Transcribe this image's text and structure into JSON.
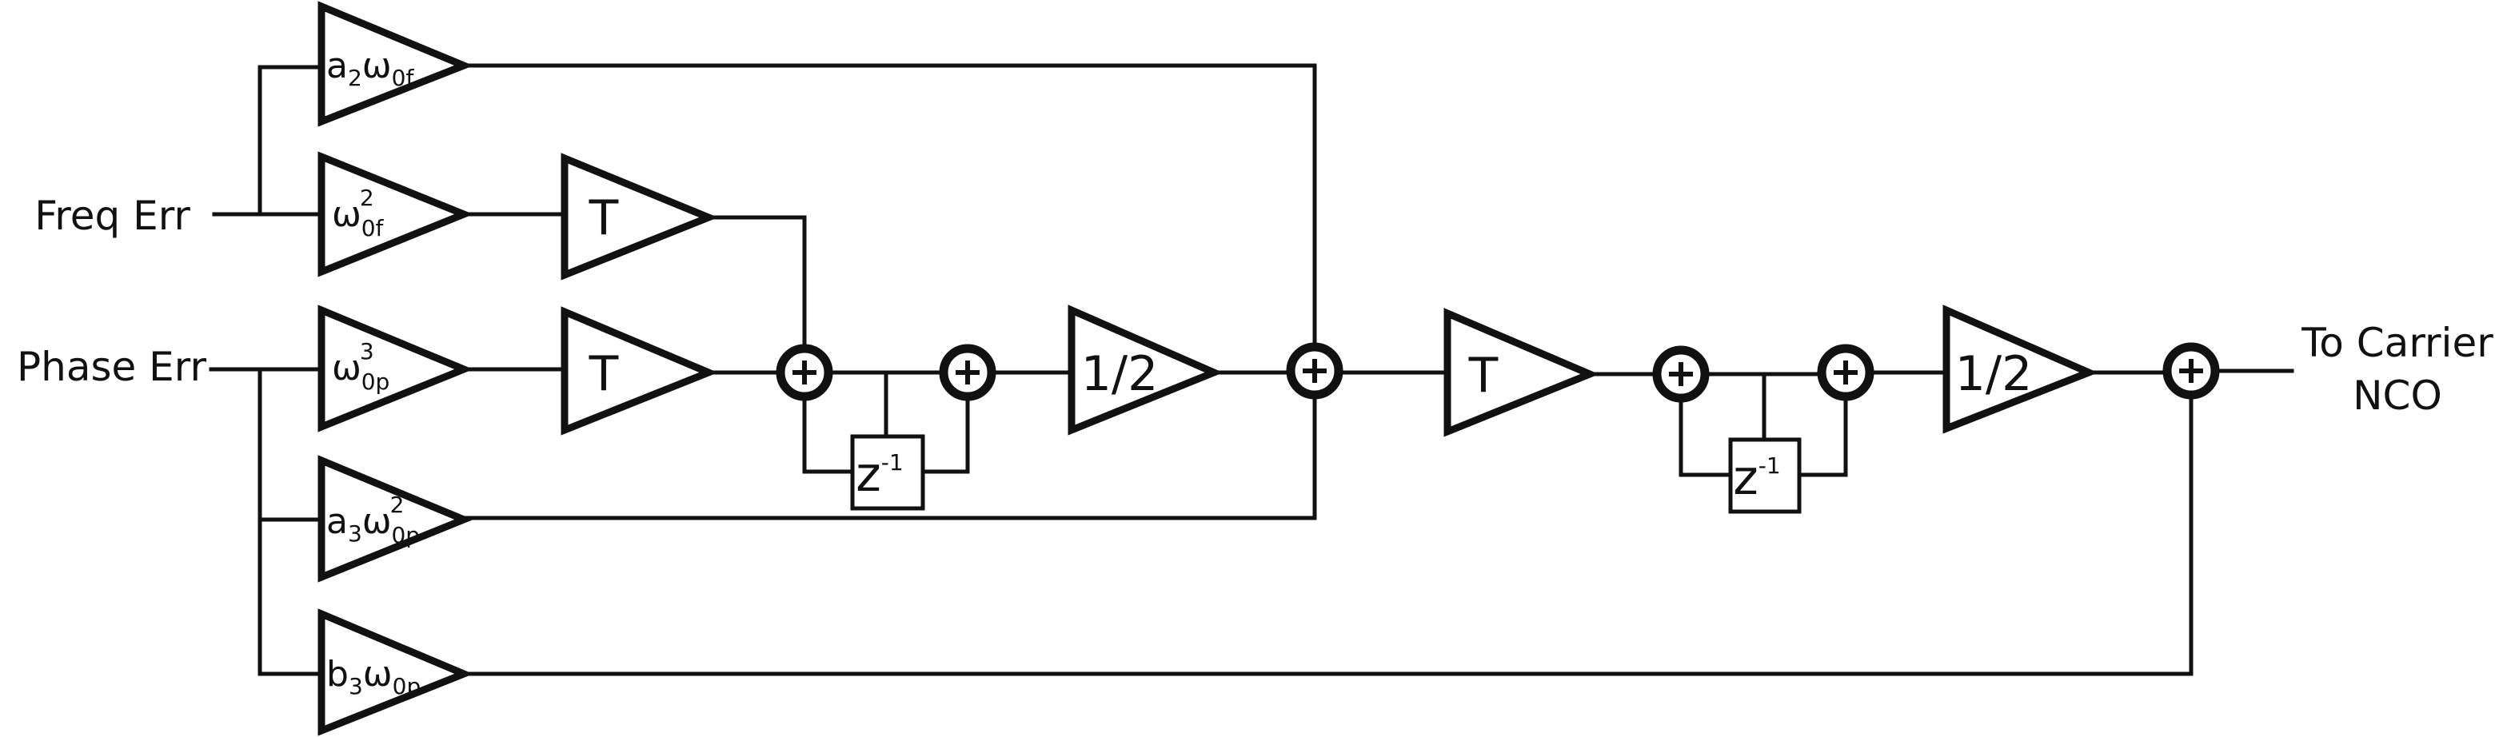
{
  "inputs": {
    "freq_err": "Freq Err",
    "phase_err": "Phase Err"
  },
  "output": {
    "line1": "To Carrier",
    "line2": "NCO"
  },
  "gains": {
    "a2": {
      "coef": "a",
      "coef_sub": "2",
      "omega": "ω",
      "omega_sub": "0f"
    },
    "w0f2": {
      "omega": "ω",
      "omega_sup": "2",
      "omega_sub": "0f"
    },
    "w0p3": {
      "omega": "ω",
      "omega_sup": "3",
      "omega_sub": "0p"
    },
    "a3": {
      "coef": "a",
      "coef_sub": "3",
      "omega": "ω",
      "omega_sup": "2",
      "omega_sub": "0p"
    },
    "b3": {
      "coef": "b",
      "coef_sub": "3",
      "omega": "ω",
      "omega_sub": "0p"
    }
  },
  "blocks": {
    "t_label": "T",
    "half_label": "1/2",
    "z_base": "z",
    "z_exp": "-1",
    "plus": "+"
  }
}
